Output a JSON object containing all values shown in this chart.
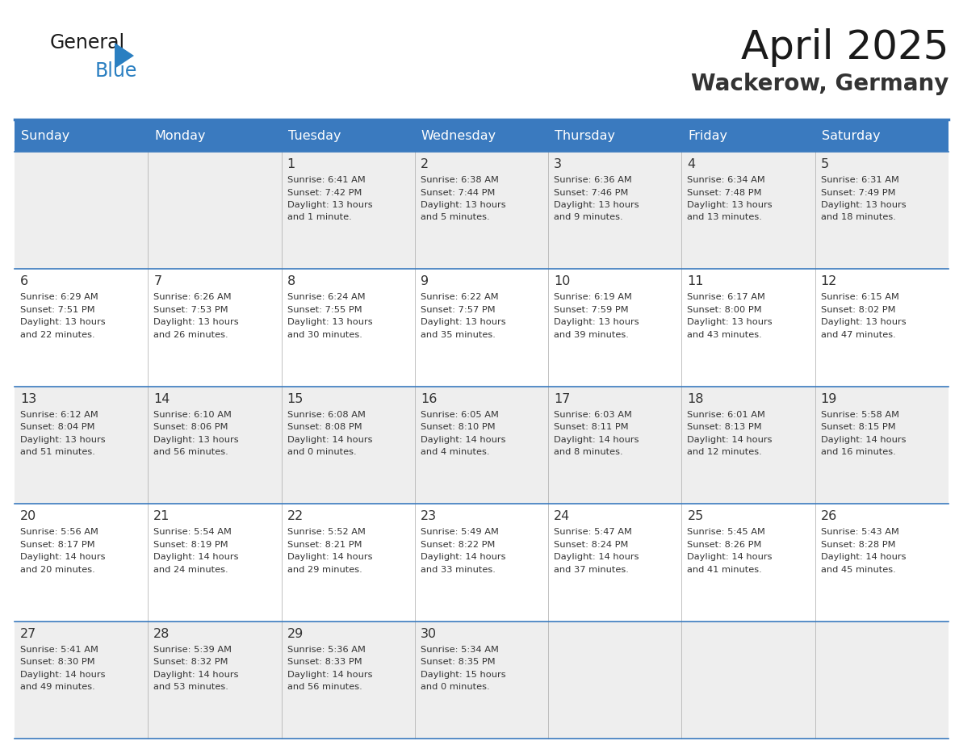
{
  "title": "April 2025",
  "subtitle": "Wackerow, Germany",
  "days_of_week": [
    "Sunday",
    "Monday",
    "Tuesday",
    "Wednesday",
    "Thursday",
    "Friday",
    "Saturday"
  ],
  "header_bg": "#3a7abf",
  "header_text": "#ffffff",
  "row_bg_light": "#eeeeee",
  "row_bg_white": "#ffffff",
  "cell_text_color": "#333333",
  "day_number_color": "#333333",
  "separator_color": "#3a7abf",
  "border_color": "#3a7abf",
  "logo_general_color": "#1a1a1a",
  "logo_blue_color": "#2a7fc1",
  "logo_triangle_color": "#2a7fc1",
  "calendar_data": [
    [
      {
        "day": null,
        "sunrise": null,
        "sunset": null,
        "daylight": null
      },
      {
        "day": null,
        "sunrise": null,
        "sunset": null,
        "daylight": null
      },
      {
        "day": 1,
        "sunrise": "6:41 AM",
        "sunset": "7:42 PM",
        "daylight": "13 hours and 1 minute."
      },
      {
        "day": 2,
        "sunrise": "6:38 AM",
        "sunset": "7:44 PM",
        "daylight": "13 hours and 5 minutes."
      },
      {
        "day": 3,
        "sunrise": "6:36 AM",
        "sunset": "7:46 PM",
        "daylight": "13 hours and 9 minutes."
      },
      {
        "day": 4,
        "sunrise": "6:34 AM",
        "sunset": "7:48 PM",
        "daylight": "13 hours and 13 minutes."
      },
      {
        "day": 5,
        "sunrise": "6:31 AM",
        "sunset": "7:49 PM",
        "daylight": "13 hours and 18 minutes."
      }
    ],
    [
      {
        "day": 6,
        "sunrise": "6:29 AM",
        "sunset": "7:51 PM",
        "daylight": "13 hours and 22 minutes."
      },
      {
        "day": 7,
        "sunrise": "6:26 AM",
        "sunset": "7:53 PM",
        "daylight": "13 hours and 26 minutes."
      },
      {
        "day": 8,
        "sunrise": "6:24 AM",
        "sunset": "7:55 PM",
        "daylight": "13 hours and 30 minutes."
      },
      {
        "day": 9,
        "sunrise": "6:22 AM",
        "sunset": "7:57 PM",
        "daylight": "13 hours and 35 minutes."
      },
      {
        "day": 10,
        "sunrise": "6:19 AM",
        "sunset": "7:59 PM",
        "daylight": "13 hours and 39 minutes."
      },
      {
        "day": 11,
        "sunrise": "6:17 AM",
        "sunset": "8:00 PM",
        "daylight": "13 hours and 43 minutes."
      },
      {
        "day": 12,
        "sunrise": "6:15 AM",
        "sunset": "8:02 PM",
        "daylight": "13 hours and 47 minutes."
      }
    ],
    [
      {
        "day": 13,
        "sunrise": "6:12 AM",
        "sunset": "8:04 PM",
        "daylight": "13 hours and 51 minutes."
      },
      {
        "day": 14,
        "sunrise": "6:10 AM",
        "sunset": "8:06 PM",
        "daylight": "13 hours and 56 minutes."
      },
      {
        "day": 15,
        "sunrise": "6:08 AM",
        "sunset": "8:08 PM",
        "daylight": "14 hours and 0 minutes."
      },
      {
        "day": 16,
        "sunrise": "6:05 AM",
        "sunset": "8:10 PM",
        "daylight": "14 hours and 4 minutes."
      },
      {
        "day": 17,
        "sunrise": "6:03 AM",
        "sunset": "8:11 PM",
        "daylight": "14 hours and 8 minutes."
      },
      {
        "day": 18,
        "sunrise": "6:01 AM",
        "sunset": "8:13 PM",
        "daylight": "14 hours and 12 minutes."
      },
      {
        "day": 19,
        "sunrise": "5:58 AM",
        "sunset": "8:15 PM",
        "daylight": "14 hours and 16 minutes."
      }
    ],
    [
      {
        "day": 20,
        "sunrise": "5:56 AM",
        "sunset": "8:17 PM",
        "daylight": "14 hours and 20 minutes."
      },
      {
        "day": 21,
        "sunrise": "5:54 AM",
        "sunset": "8:19 PM",
        "daylight": "14 hours and 24 minutes."
      },
      {
        "day": 22,
        "sunrise": "5:52 AM",
        "sunset": "8:21 PM",
        "daylight": "14 hours and 29 minutes."
      },
      {
        "day": 23,
        "sunrise": "5:49 AM",
        "sunset": "8:22 PM",
        "daylight": "14 hours and 33 minutes."
      },
      {
        "day": 24,
        "sunrise": "5:47 AM",
        "sunset": "8:24 PM",
        "daylight": "14 hours and 37 minutes."
      },
      {
        "day": 25,
        "sunrise": "5:45 AM",
        "sunset": "8:26 PM",
        "daylight": "14 hours and 41 minutes."
      },
      {
        "day": 26,
        "sunrise": "5:43 AM",
        "sunset": "8:28 PM",
        "daylight": "14 hours and 45 minutes."
      }
    ],
    [
      {
        "day": 27,
        "sunrise": "5:41 AM",
        "sunset": "8:30 PM",
        "daylight": "14 hours and 49 minutes."
      },
      {
        "day": 28,
        "sunrise": "5:39 AM",
        "sunset": "8:32 PM",
        "daylight": "14 hours and 53 minutes."
      },
      {
        "day": 29,
        "sunrise": "5:36 AM",
        "sunset": "8:33 PM",
        "daylight": "14 hours and 56 minutes."
      },
      {
        "day": 30,
        "sunrise": "5:34 AM",
        "sunset": "8:35 PM",
        "daylight": "15 hours and 0 minutes."
      },
      {
        "day": null,
        "sunrise": null,
        "sunset": null,
        "daylight": null
      },
      {
        "day": null,
        "sunrise": null,
        "sunset": null,
        "daylight": null
      },
      {
        "day": null,
        "sunrise": null,
        "sunset": null,
        "daylight": null
      }
    ]
  ]
}
